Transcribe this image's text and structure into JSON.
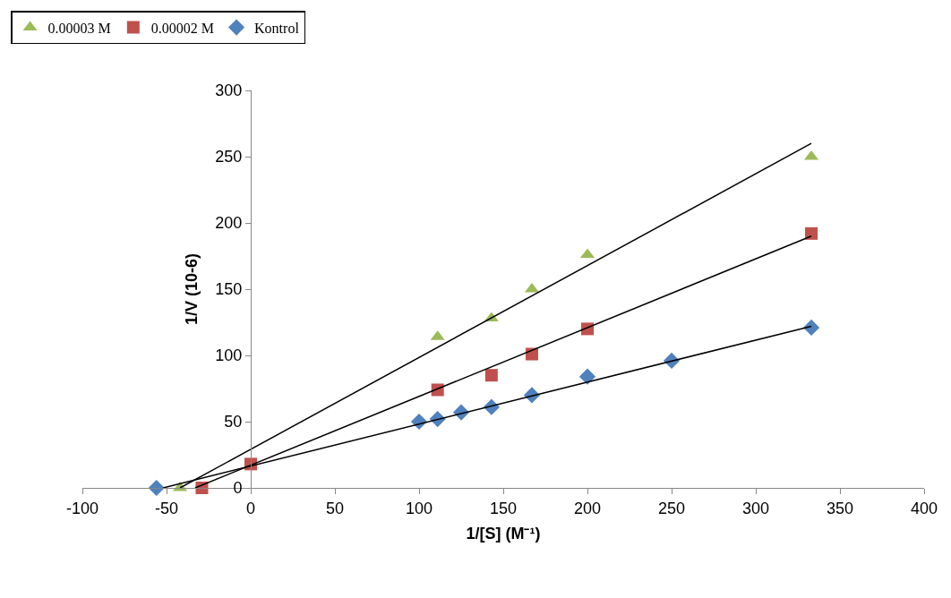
{
  "chart_data": {
    "type": "scatter",
    "xlabel": "1/[S] (M⁻¹)",
    "ylabel": "1/V (10-6)",
    "xlim": [
      -100,
      400
    ],
    "xticks": [
      -100,
      -50,
      0,
      50,
      100,
      150,
      200,
      250,
      300,
      350,
      400
    ],
    "ylim": [
      0,
      300
    ],
    "yticks": [
      0,
      50,
      100,
      150,
      200,
      250,
      300
    ],
    "grid": false,
    "legend": "top left",
    "series": [
      {
        "name": "0.00003 M",
        "color": "#9bbb59",
        "marker": "triangle",
        "x": [
          -42,
          0,
          111,
          143,
          167,
          200,
          333
        ],
        "values": [
          0,
          null,
          114,
          128,
          150,
          176,
          250
        ]
      },
      {
        "name": "0.00002 M",
        "color": "#c0504d",
        "marker": "square",
        "x": [
          -29,
          0,
          111,
          143,
          167,
          200,
          333
        ],
        "values": [
          0,
          18,
          74,
          85,
          101,
          120,
          192
        ]
      },
      {
        "name": "Kontrol",
        "color": "#4f81bd",
        "marker": "diamond",
        "x": [
          -56,
          0,
          100,
          111,
          125,
          143,
          167,
          200,
          250,
          333
        ],
        "values": [
          0,
          null,
          50,
          52,
          57,
          61,
          70,
          84,
          96,
          121
        ]
      },
      {
        "type": "line",
        "color": "#000000",
        "marker": "none",
        "x": [
          -42,
          333
        ],
        "values": [
          0,
          260
        ]
      },
      {
        "type": "line",
        "color": "#000000",
        "marker": "none",
        "x": [
          -33,
          333
        ],
        "values": [
          0,
          190
        ]
      },
      {
        "type": "line",
        "color": "#000000",
        "marker": "none",
        "x": [
          -52,
          333
        ],
        "values": [
          0,
          122
        ]
      }
    ]
  }
}
